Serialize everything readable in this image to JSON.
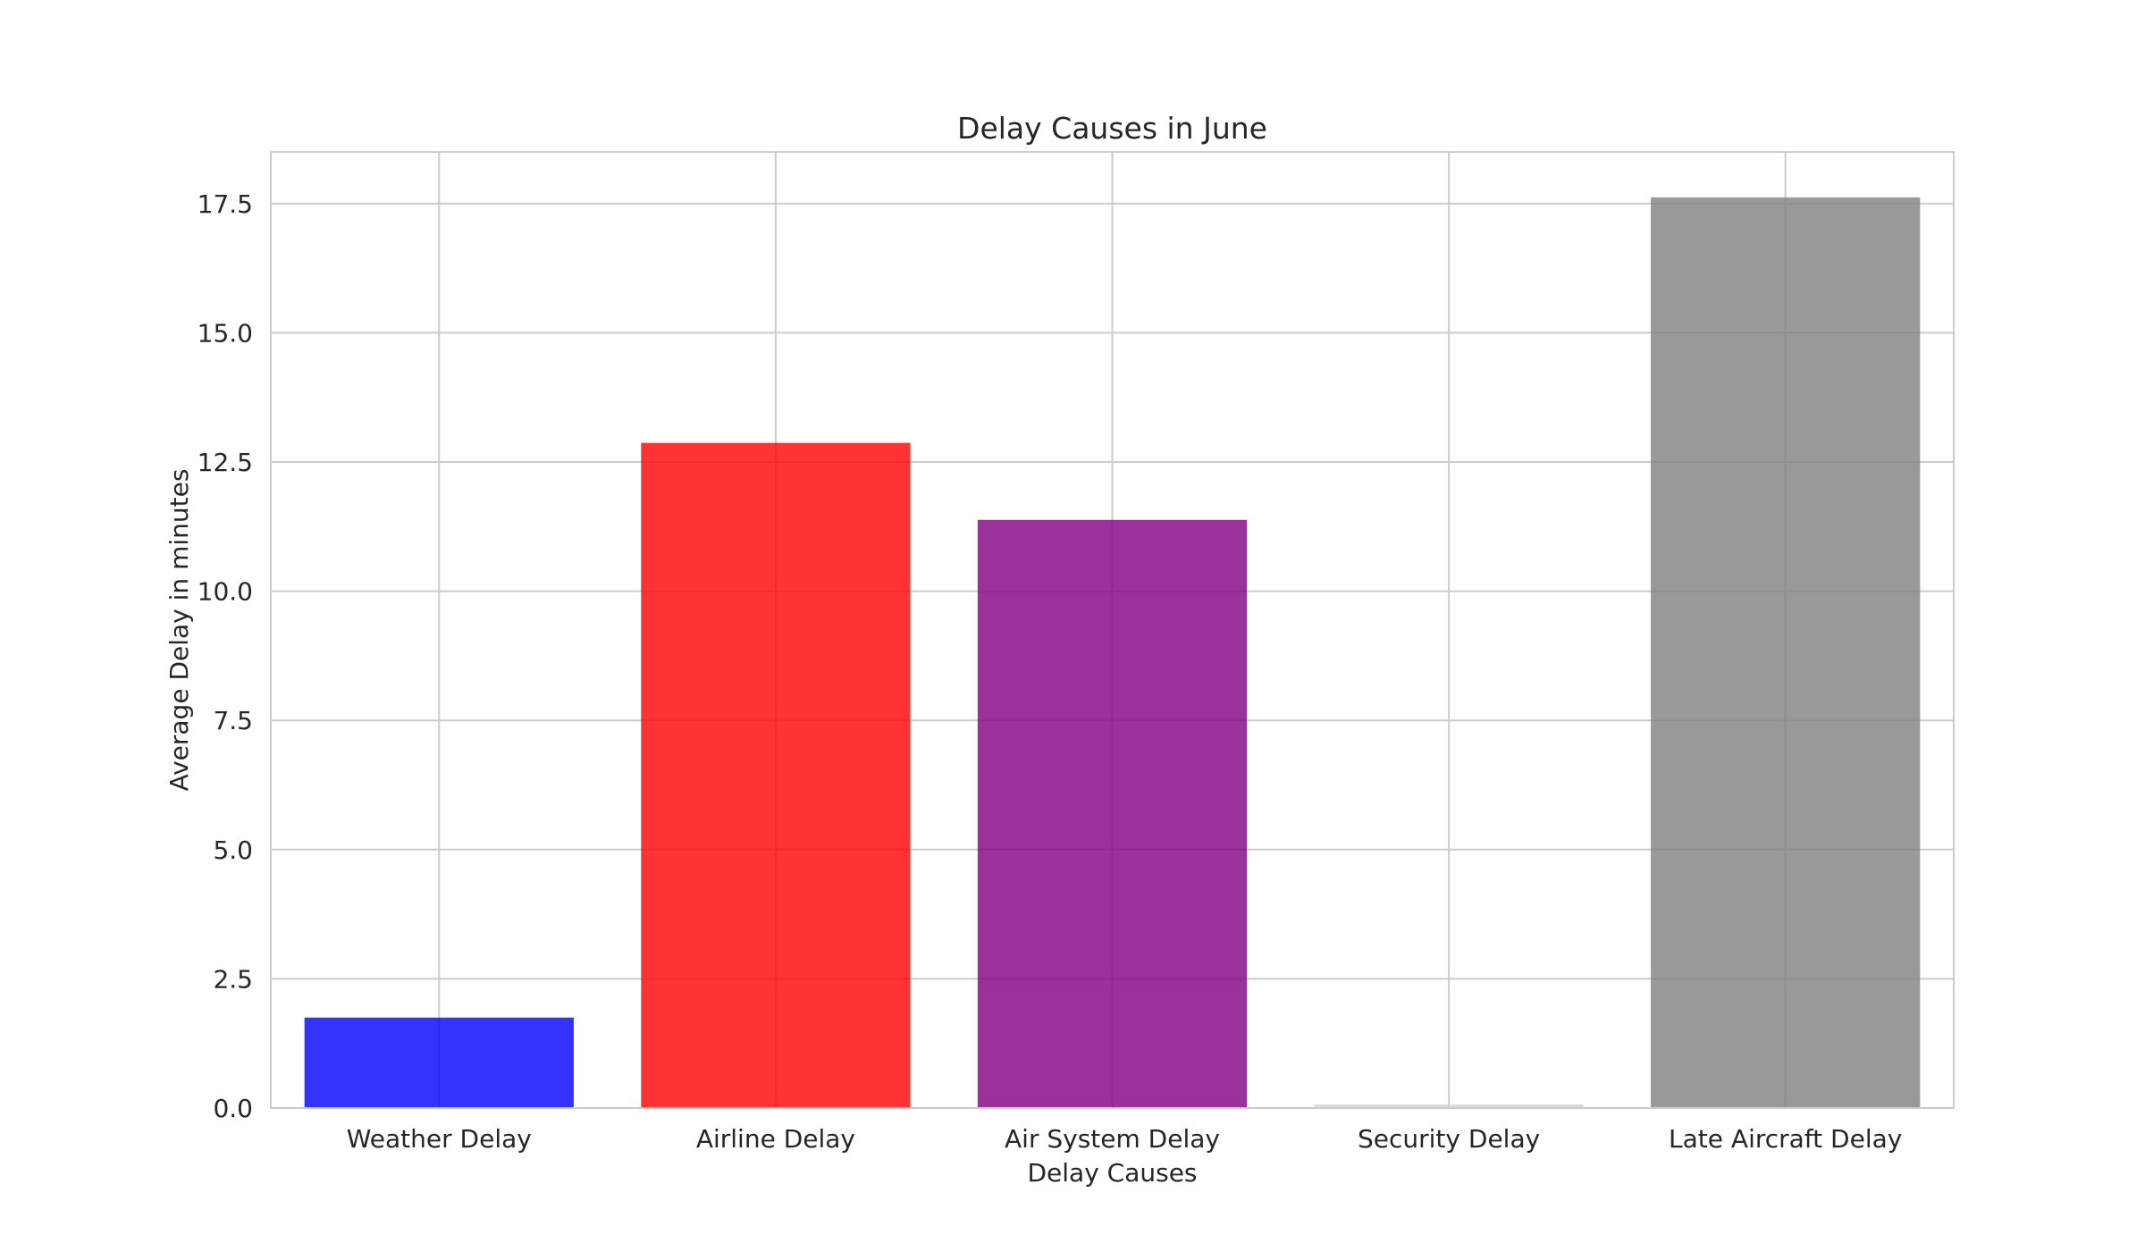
{
  "chart_data": {
    "type": "bar",
    "title": "Delay Causes in June",
    "xlabel": "Delay Causes",
    "ylabel": "Average Delay in minutes",
    "categories": [
      "Weather Delay",
      "Airline Delay",
      "Air System Delay",
      "Security Delay",
      "Late Aircraft Delay"
    ],
    "values": [
      1.75,
      12.87,
      11.38,
      0.07,
      17.62
    ],
    "colors": [
      "#0000ff",
      "#ff0000",
      "#800080",
      "#d3d3d3",
      "#808080"
    ],
    "bar_opacity": 0.8,
    "ylim": [
      0,
      18.5
    ],
    "yticks": [
      0.0,
      2.5,
      5.0,
      7.5,
      10.0,
      12.5,
      15.0,
      17.5
    ],
    "ytick_labels": [
      "0.0",
      "2.5",
      "5.0",
      "7.5",
      "10.0",
      "12.5",
      "15.0",
      "17.5"
    ],
    "grid": true,
    "legend": "none"
  }
}
